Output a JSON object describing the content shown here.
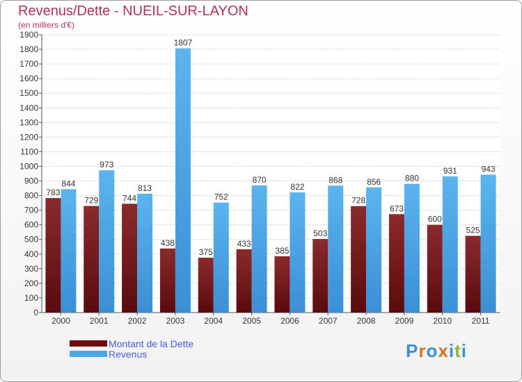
{
  "title": "Revenus/Dette - NUEIL-SUR-LAYON",
  "subtitle": "(en milliers d'€)",
  "colors": {
    "title": "#b2305a",
    "debt": "#7a1b1e",
    "revenue": "#4ea8e6"
  },
  "chart_data": {
    "type": "bar",
    "title": "Revenus/Dette - NUEIL-SUR-LAYON",
    "ylabel": "(en milliers d'€)",
    "xlabel": "",
    "categories": [
      "2000",
      "2001",
      "2002",
      "2003",
      "2004",
      "2005",
      "2006",
      "2007",
      "2008",
      "2009",
      "2010",
      "2011"
    ],
    "series": [
      {
        "name": "Montant de la Dette",
        "values": [
          783,
          729,
          744,
          438,
          375,
          433,
          385,
          503,
          728,
          673,
          600,
          525
        ]
      },
      {
        "name": "Revenus",
        "values": [
          844,
          973,
          813,
          1807,
          752,
          870,
          822,
          868,
          856,
          880,
          931,
          943
        ]
      }
    ],
    "ylim": [
      0,
      1900
    ],
    "yticks": [
      0,
      100,
      200,
      300,
      400,
      500,
      600,
      700,
      800,
      900,
      1000,
      1100,
      1200,
      1300,
      1400,
      1500,
      1600,
      1700,
      1800,
      1900
    ],
    "grid": true,
    "legend": "bottom-left"
  },
  "legend": {
    "items": [
      {
        "label": "Montant de la Dette",
        "color": "#6b0f12"
      },
      {
        "label": "Revenus",
        "color": "#4ea8e6"
      }
    ]
  },
  "logo": {
    "text": "Proxiti",
    "letters": [
      "P",
      "r",
      "o",
      "x",
      "i",
      "t",
      "i"
    ],
    "colors": [
      "#3a8fd8",
      "#e0701c",
      "#3a8fd8",
      "#e0701c",
      "#3a8fd8",
      "#8cb838",
      "#3a8fd8"
    ]
  }
}
